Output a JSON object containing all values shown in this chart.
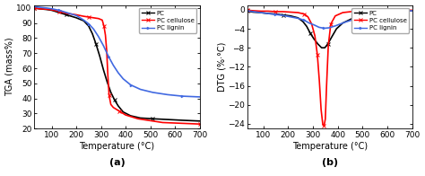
{
  "tga": {
    "xlim": [
      30,
      700
    ],
    "ylim": [
      20,
      102
    ],
    "xlabel": "Temperature (°C)",
    "ylabel": "TGA (mass%)",
    "xticks": [
      100,
      200,
      300,
      400,
      500,
      600,
      700
    ],
    "yticks": [
      20,
      30,
      40,
      50,
      60,
      70,
      80,
      90,
      100
    ],
    "label": "(a)",
    "pc": {
      "x": [
        30,
        50,
        80,
        100,
        130,
        160,
        200,
        230,
        250,
        265,
        280,
        295,
        310,
        325,
        340,
        355,
        370,
        390,
        420,
        460,
        510,
        570,
        630,
        700
      ],
      "y": [
        100,
        99.5,
        99,
        98.5,
        97,
        95.5,
        93.5,
        91.5,
        88,
        83,
        76,
        68,
        59,
        51,
        44,
        39,
        35,
        31,
        28.5,
        27,
        26.5,
        26,
        25.5,
        25
      ],
      "color": "#000000",
      "lw": 1.2
    },
    "pc_cellulose": {
      "x": [
        30,
        50,
        80,
        100,
        130,
        160,
        200,
        230,
        250,
        270,
        290,
        305,
        312,
        318,
        323,
        328,
        333,
        340,
        350,
        360,
        375,
        400,
        450,
        550,
        700
      ],
      "y": [
        100,
        99.5,
        99.2,
        98.8,
        97.8,
        96.5,
        95.5,
        94.5,
        94,
        93.5,
        93,
        92,
        88,
        82,
        72,
        55,
        42,
        36,
        34,
        33,
        31.5,
        29,
        26.5,
        24,
        23
      ],
      "color": "#ff0000",
      "lw": 1.2
    },
    "pc_lignin": {
      "x": [
        30,
        50,
        80,
        100,
        130,
        160,
        200,
        230,
        250,
        270,
        290,
        310,
        330,
        350,
        370,
        390,
        420,
        460,
        510,
        570,
        630,
        700
      ],
      "y": [
        101,
        100.5,
        100,
        99.5,
        98.5,
        97,
        95,
        92,
        89.5,
        86,
        81,
        75,
        68,
        62,
        57,
        53,
        49,
        46,
        44,
        42.5,
        41.5,
        41
      ],
      "color": "#4169e1",
      "lw": 1.2
    }
  },
  "dtg": {
    "xlim": [
      35,
      700
    ],
    "ylim": [
      -25,
      1
    ],
    "xlabel": "Temperature (°C)",
    "ylabel": "DTG (%·°C)",
    "xticks": [
      100,
      200,
      300,
      400,
      500,
      600,
      700
    ],
    "yticks": [
      0,
      -4,
      -8,
      -12,
      -16,
      -20,
      -24
    ],
    "label": "(b)",
    "pc": {
      "x": [
        35,
        60,
        90,
        120,
        150,
        180,
        210,
        240,
        260,
        275,
        290,
        305,
        320,
        335,
        348,
        360,
        375,
        395,
        420,
        460,
        510,
        580,
        650,
        700
      ],
      "y": [
        -0.3,
        -0.5,
        -0.6,
        -0.8,
        -0.9,
        -1.1,
        -1.3,
        -1.7,
        -2.5,
        -3.5,
        -5.0,
        -6.2,
        -7.2,
        -8.0,
        -8.0,
        -7.2,
        -5.8,
        -4.0,
        -2.8,
        -1.8,
        -1.2,
        -0.7,
        -0.4,
        -0.2
      ],
      "color": "#000000",
      "lw": 1.2
    },
    "pc_cellulose": {
      "x": [
        35,
        60,
        90,
        120,
        150,
        180,
        210,
        240,
        265,
        280,
        295,
        308,
        318,
        326,
        333,
        340,
        345,
        350,
        355,
        362,
        372,
        390,
        420,
        470,
        540,
        630,
        700
      ],
      "y": [
        -0.1,
        -0.2,
        -0.3,
        -0.3,
        -0.4,
        -0.4,
        -0.5,
        -0.6,
        -0.9,
        -1.5,
        -3.0,
        -5.5,
        -9.5,
        -15.0,
        -21.0,
        -24.2,
        -24.4,
        -23.0,
        -16.0,
        -7.5,
        -3.0,
        -1.3,
        -0.6,
        -0.3,
        -0.2,
        -0.1,
        -0.1
      ],
      "color": "#ff0000",
      "lw": 1.2
    },
    "pc_lignin": {
      "x": [
        35,
        60,
        90,
        120,
        150,
        180,
        210,
        240,
        265,
        285,
        305,
        325,
        345,
        365,
        390,
        430,
        480,
        540,
        610,
        700
      ],
      "y": [
        -0.2,
        -0.4,
        -0.6,
        -0.8,
        -1.0,
        -1.2,
        -1.5,
        -1.8,
        -2.2,
        -2.8,
        -3.2,
        -3.7,
        -3.9,
        -3.8,
        -3.4,
        -2.6,
        -1.8,
        -1.1,
        -0.6,
        -0.2
      ],
      "color": "#4169e1",
      "lw": 1.2
    }
  },
  "legend_labels": [
    "PC",
    "PC cellulose",
    "PC lignin"
  ],
  "legend_colors": [
    "#000000",
    "#ff0000",
    "#4169e1"
  ],
  "background": "#ffffff",
  "font_size": 6.5,
  "label_fontsize": 7
}
